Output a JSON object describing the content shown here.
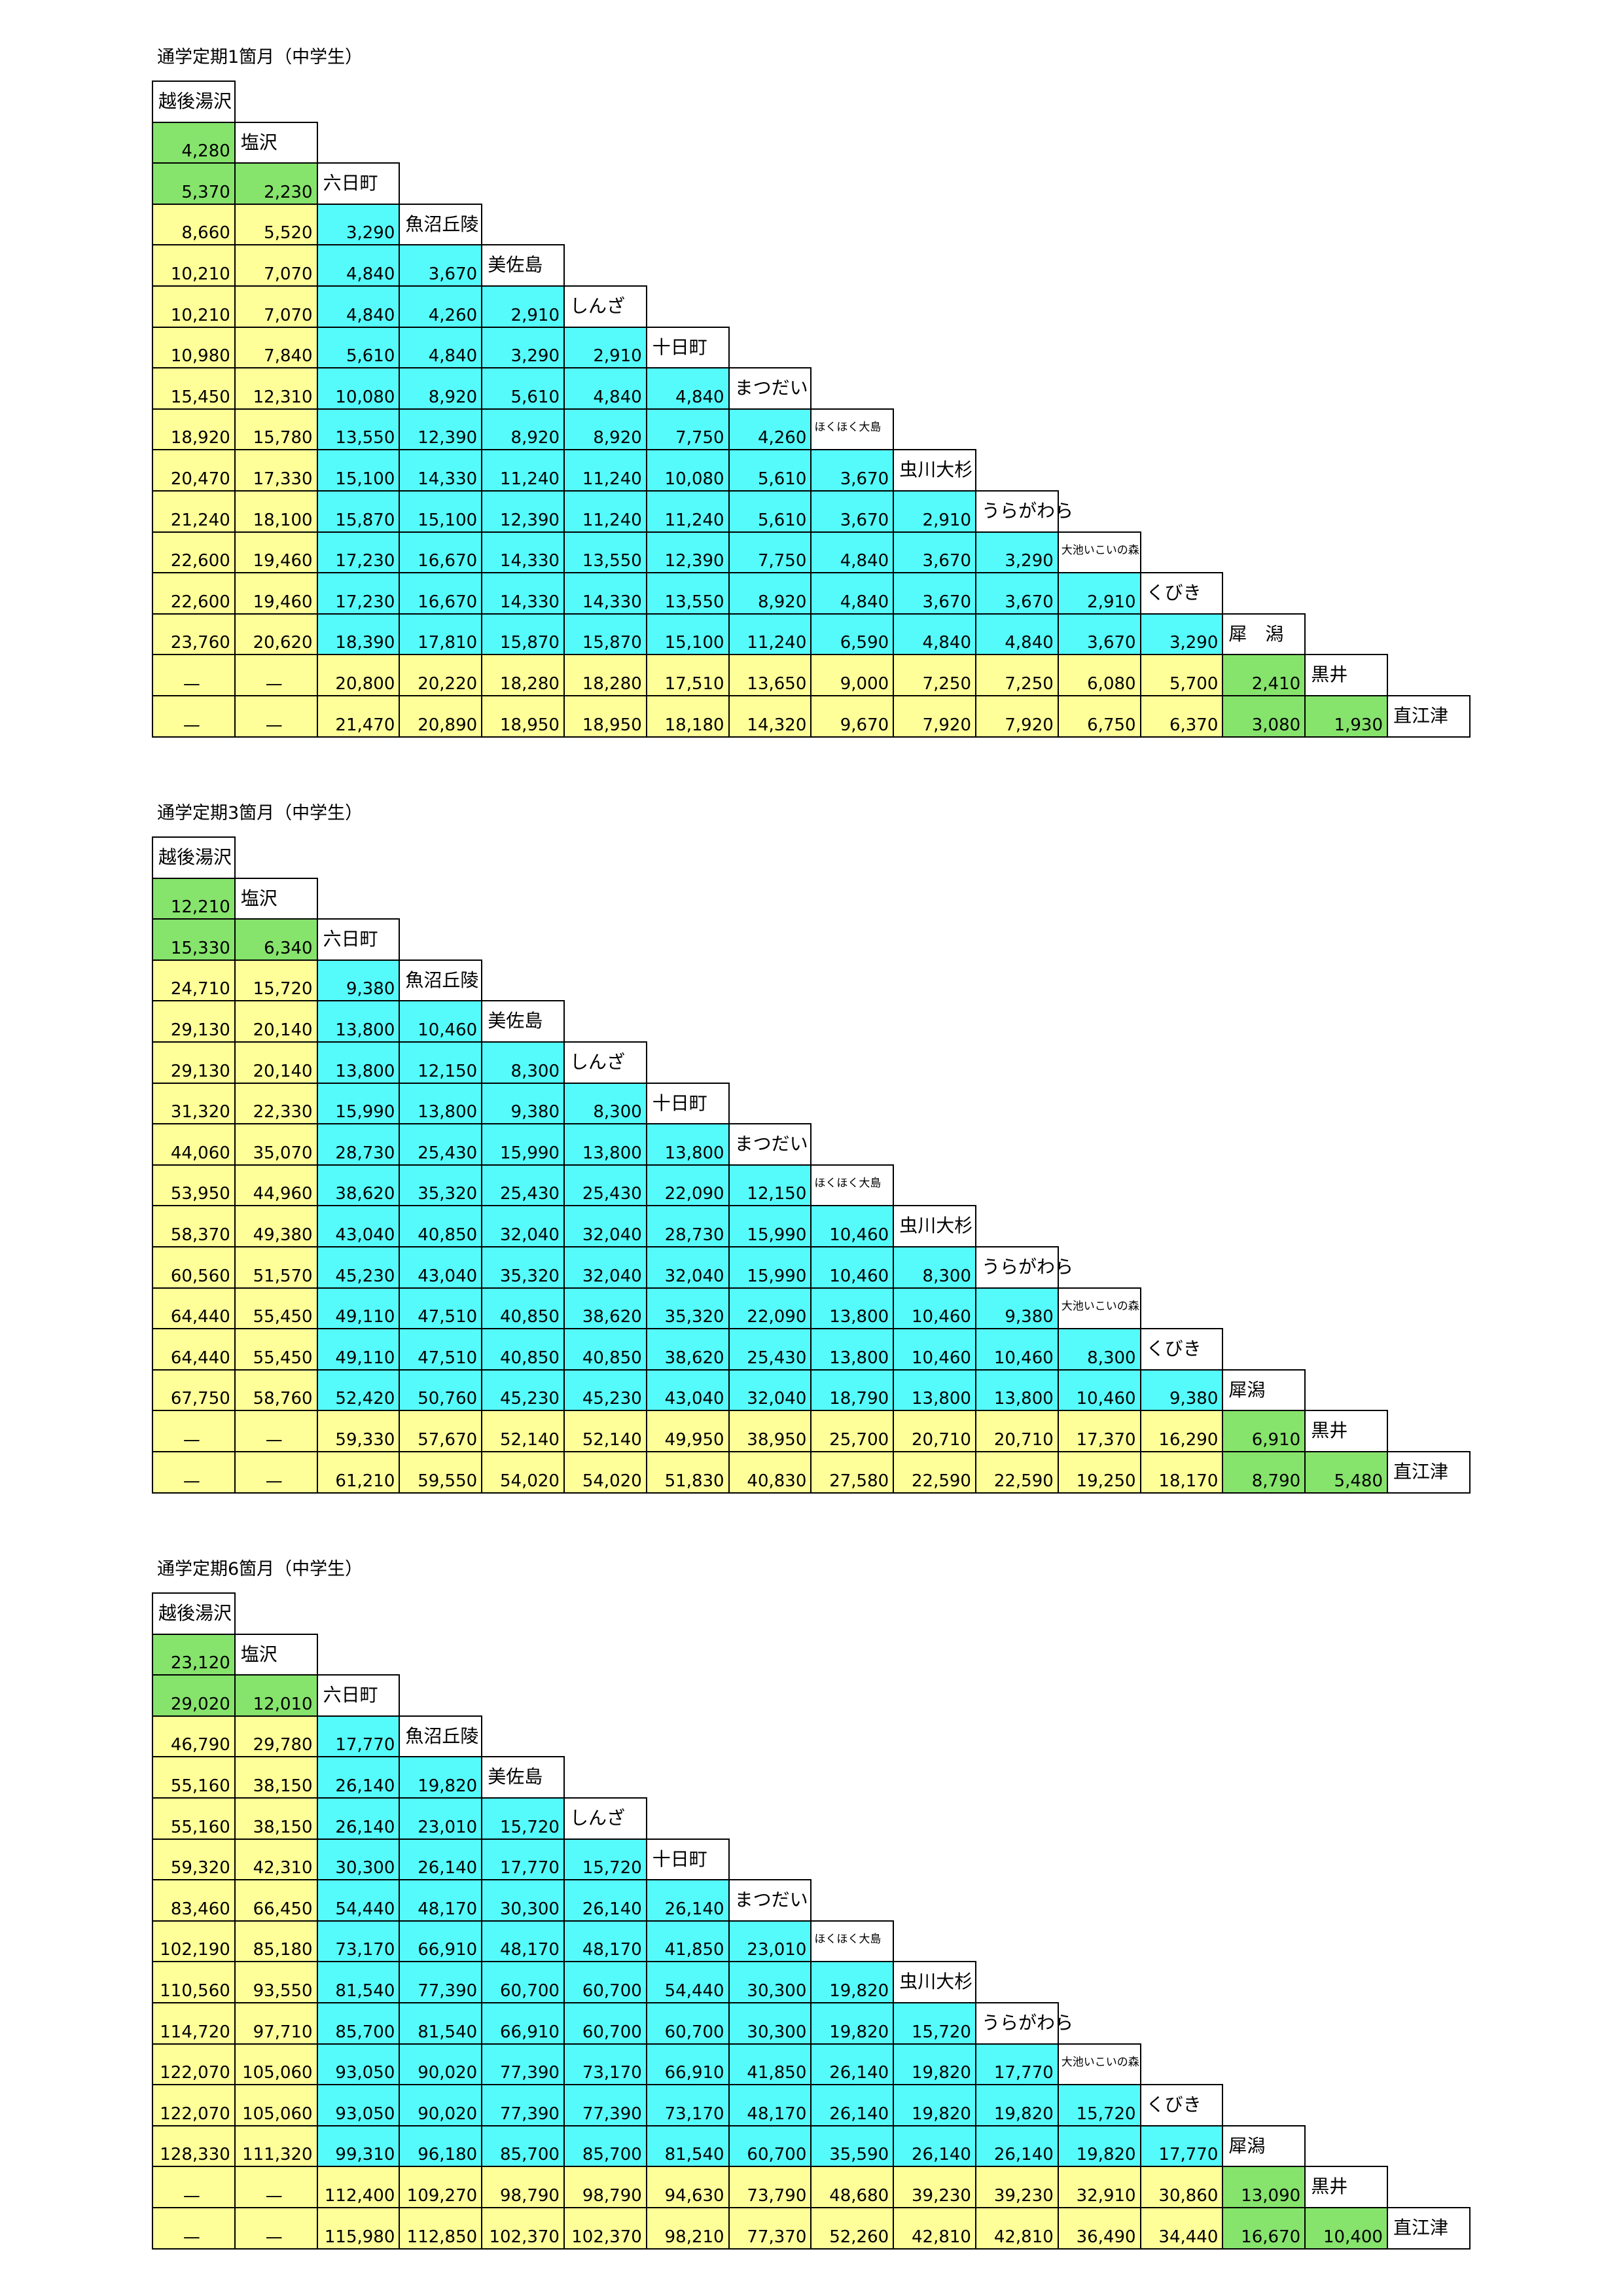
{
  "tables": [
    {
      "title": "通学定期1箇月（中学生）",
      "rows": [
        {
          "station": "越後湯沢",
          "fares": []
        },
        {
          "station": "塩沢",
          "fares": [
            "4,280"
          ]
        },
        {
          "station": "六日町",
          "fares": [
            "5,370",
            "2,230"
          ]
        },
        {
          "station": "魚沼丘陵",
          "fares": [
            "8,660",
            "5,520",
            "3,290"
          ]
        },
        {
          "station": "美佐島",
          "fares": [
            "10,210",
            "7,070",
            "4,840",
            "3,670"
          ]
        },
        {
          "station": "しんざ",
          "fares": [
            "10,210",
            "7,070",
            "4,840",
            "4,260",
            "2,910"
          ]
        },
        {
          "station": "十日町",
          "fares": [
            "10,980",
            "7,840",
            "5,610",
            "4,840",
            "3,290",
            "2,910"
          ]
        },
        {
          "station": "まつだい",
          "fares": [
            "15,450",
            "12,310",
            "10,080",
            "8,920",
            "5,610",
            "4,840",
            "4,840"
          ]
        },
        {
          "station": "ほくほく大島",
          "fares": [
            "18,920",
            "15,780",
            "13,550",
            "12,390",
            "8,920",
            "8,920",
            "7,750",
            "4,260"
          ]
        },
        {
          "station": "虫川大杉",
          "fares": [
            "20,470",
            "17,330",
            "15,100",
            "14,330",
            "11,240",
            "11,240",
            "10,080",
            "5,610",
            "3,670"
          ]
        },
        {
          "station": "うらがわら",
          "fares": [
            "21,240",
            "18,100",
            "15,870",
            "15,100",
            "12,390",
            "11,240",
            "11,240",
            "5,610",
            "3,670",
            "2,910"
          ]
        },
        {
          "station": "大池いこいの森",
          "fares": [
            "22,600",
            "19,460",
            "17,230",
            "16,670",
            "14,330",
            "13,550",
            "12,390",
            "7,750",
            "4,840",
            "3,670",
            "3,290"
          ]
        },
        {
          "station": "くびき",
          "fares": [
            "22,600",
            "19,460",
            "17,230",
            "16,670",
            "14,330",
            "14,330",
            "13,550",
            "8,920",
            "4,840",
            "3,670",
            "3,670",
            "2,910"
          ]
        },
        {
          "station": "犀　潟",
          "fares": [
            "23,760",
            "20,620",
            "18,390",
            "17,810",
            "15,870",
            "15,870",
            "15,100",
            "11,240",
            "6,590",
            "4,840",
            "4,840",
            "3,670",
            "3,290"
          ]
        },
        {
          "station": "黒井",
          "fares": [
            "—",
            "—",
            "20,800",
            "20,220",
            "18,280",
            "18,280",
            "17,510",
            "13,650",
            "9,000",
            "7,250",
            "7,250",
            "6,080",
            "5,700",
            "2,410"
          ]
        },
        {
          "station": "直江津",
          "fares": [
            "—",
            "—",
            "21,470",
            "20,890",
            "18,950",
            "18,950",
            "18,180",
            "14,320",
            "9,670",
            "7,920",
            "7,920",
            "6,750",
            "6,370",
            "3,080",
            "1,930"
          ]
        }
      ]
    },
    {
      "title": "通学定期3箇月（中学生）",
      "rows": [
        {
          "station": "越後湯沢",
          "fares": []
        },
        {
          "station": "塩沢",
          "fares": [
            "12,210"
          ]
        },
        {
          "station": "六日町",
          "fares": [
            "15,330",
            "6,340"
          ]
        },
        {
          "station": "魚沼丘陵",
          "fares": [
            "24,710",
            "15,720",
            "9,380"
          ]
        },
        {
          "station": "美佐島",
          "fares": [
            "29,130",
            "20,140",
            "13,800",
            "10,460"
          ]
        },
        {
          "station": "しんざ",
          "fares": [
            "29,130",
            "20,140",
            "13,800",
            "12,150",
            "8,300"
          ]
        },
        {
          "station": "十日町",
          "fares": [
            "31,320",
            "22,330",
            "15,990",
            "13,800",
            "9,380",
            "8,300"
          ]
        },
        {
          "station": "まつだい",
          "fares": [
            "44,060",
            "35,070",
            "28,730",
            "25,430",
            "15,990",
            "13,800",
            "13,800"
          ]
        },
        {
          "station": "ほくほく大島",
          "fares": [
            "53,950",
            "44,960",
            "38,620",
            "35,320",
            "25,430",
            "25,430",
            "22,090",
            "12,150"
          ]
        },
        {
          "station": "虫川大杉",
          "fares": [
            "58,370",
            "49,380",
            "43,040",
            "40,850",
            "32,040",
            "32,040",
            "28,730",
            "15,990",
            "10,460"
          ]
        },
        {
          "station": "うらがわら",
          "fares": [
            "60,560",
            "51,570",
            "45,230",
            "43,040",
            "35,320",
            "32,040",
            "32,040",
            "15,990",
            "10,460",
            "8,300"
          ]
        },
        {
          "station": "大池いこいの森",
          "fares": [
            "64,440",
            "55,450",
            "49,110",
            "47,510",
            "40,850",
            "38,620",
            "35,320",
            "22,090",
            "13,800",
            "10,460",
            "9,380"
          ]
        },
        {
          "station": "くびき",
          "fares": [
            "64,440",
            "55,450",
            "49,110",
            "47,510",
            "40,850",
            "40,850",
            "38,620",
            "25,430",
            "13,800",
            "10,460",
            "10,460",
            "8,300"
          ]
        },
        {
          "station": "犀潟",
          "fares": [
            "67,750",
            "58,760",
            "52,420",
            "50,760",
            "45,230",
            "45,230",
            "43,040",
            "32,040",
            "18,790",
            "13,800",
            "13,800",
            "10,460",
            "9,380"
          ]
        },
        {
          "station": "黒井",
          "fares": [
            "—",
            "—",
            "59,330",
            "57,670",
            "52,140",
            "52,140",
            "49,950",
            "38,950",
            "25,700",
            "20,710",
            "20,710",
            "17,370",
            "16,290",
            "6,910"
          ]
        },
        {
          "station": "直江津",
          "fares": [
            "—",
            "—",
            "61,210",
            "59,550",
            "54,020",
            "54,020",
            "51,830",
            "40,830",
            "27,580",
            "22,590",
            "22,590",
            "19,250",
            "18,170",
            "8,790",
            "5,480"
          ]
        }
      ]
    },
    {
      "title": "通学定期6箇月（中学生）",
      "rows": [
        {
          "station": "越後湯沢",
          "fares": []
        },
        {
          "station": "塩沢",
          "fares": [
            "23,120"
          ]
        },
        {
          "station": "六日町",
          "fares": [
            "29,020",
            "12,010"
          ]
        },
        {
          "station": "魚沼丘陵",
          "fares": [
            "46,790",
            "29,780",
            "17,770"
          ]
        },
        {
          "station": "美佐島",
          "fares": [
            "55,160",
            "38,150",
            "26,140",
            "19,820"
          ]
        },
        {
          "station": "しんざ",
          "fares": [
            "55,160",
            "38,150",
            "26,140",
            "23,010",
            "15,720"
          ]
        },
        {
          "station": "十日町",
          "fares": [
            "59,320",
            "42,310",
            "30,300",
            "26,140",
            "17,770",
            "15,720"
          ]
        },
        {
          "station": "まつだい",
          "fares": [
            "83,460",
            "66,450",
            "54,440",
            "48,170",
            "30,300",
            "26,140",
            "26,140"
          ]
        },
        {
          "station": "ほくほく大島",
          "fares": [
            "102,190",
            "85,180",
            "73,170",
            "66,910",
            "48,170",
            "48,170",
            "41,850",
            "23,010"
          ]
        },
        {
          "station": "虫川大杉",
          "fares": [
            "110,560",
            "93,550",
            "81,540",
            "77,390",
            "60,700",
            "60,700",
            "54,440",
            "30,300",
            "19,820"
          ]
        },
        {
          "station": "うらがわら",
          "fares": [
            "114,720",
            "97,710",
            "85,700",
            "81,540",
            "66,910",
            "60,700",
            "60,700",
            "30,300",
            "19,820",
            "15,720"
          ]
        },
        {
          "station": "大池いこいの森",
          "fares": [
            "122,070",
            "105,060",
            "93,050",
            "90,020",
            "77,390",
            "73,170",
            "66,910",
            "41,850",
            "26,140",
            "19,820",
            "17,770"
          ]
        },
        {
          "station": "くびき",
          "fares": [
            "122,070",
            "105,060",
            "93,050",
            "90,020",
            "77,390",
            "77,390",
            "73,170",
            "48,170",
            "26,140",
            "19,820",
            "19,820",
            "15,720"
          ]
        },
        {
          "station": "犀潟",
          "fares": [
            "128,330",
            "111,320",
            "99,310",
            "96,180",
            "85,700",
            "85,700",
            "81,540",
            "60,700",
            "35,590",
            "26,140",
            "26,140",
            "19,820",
            "17,770"
          ]
        },
        {
          "station": "黒井",
          "fares": [
            "—",
            "—",
            "112,400",
            "109,270",
            "98,790",
            "98,790",
            "94,630",
            "73,790",
            "48,680",
            "39,230",
            "39,230",
            "32,910",
            "30,860",
            "13,090"
          ]
        },
        {
          "station": "直江津",
          "fares": [
            "—",
            "—",
            "115,980",
            "112,850",
            "102,370",
            "102,370",
            "98,210",
            "77,370",
            "52,260",
            "42,810",
            "42,810",
            "36,490",
            "34,440",
            "16,670",
            "10,400"
          ]
        }
      ]
    }
  ]
}
